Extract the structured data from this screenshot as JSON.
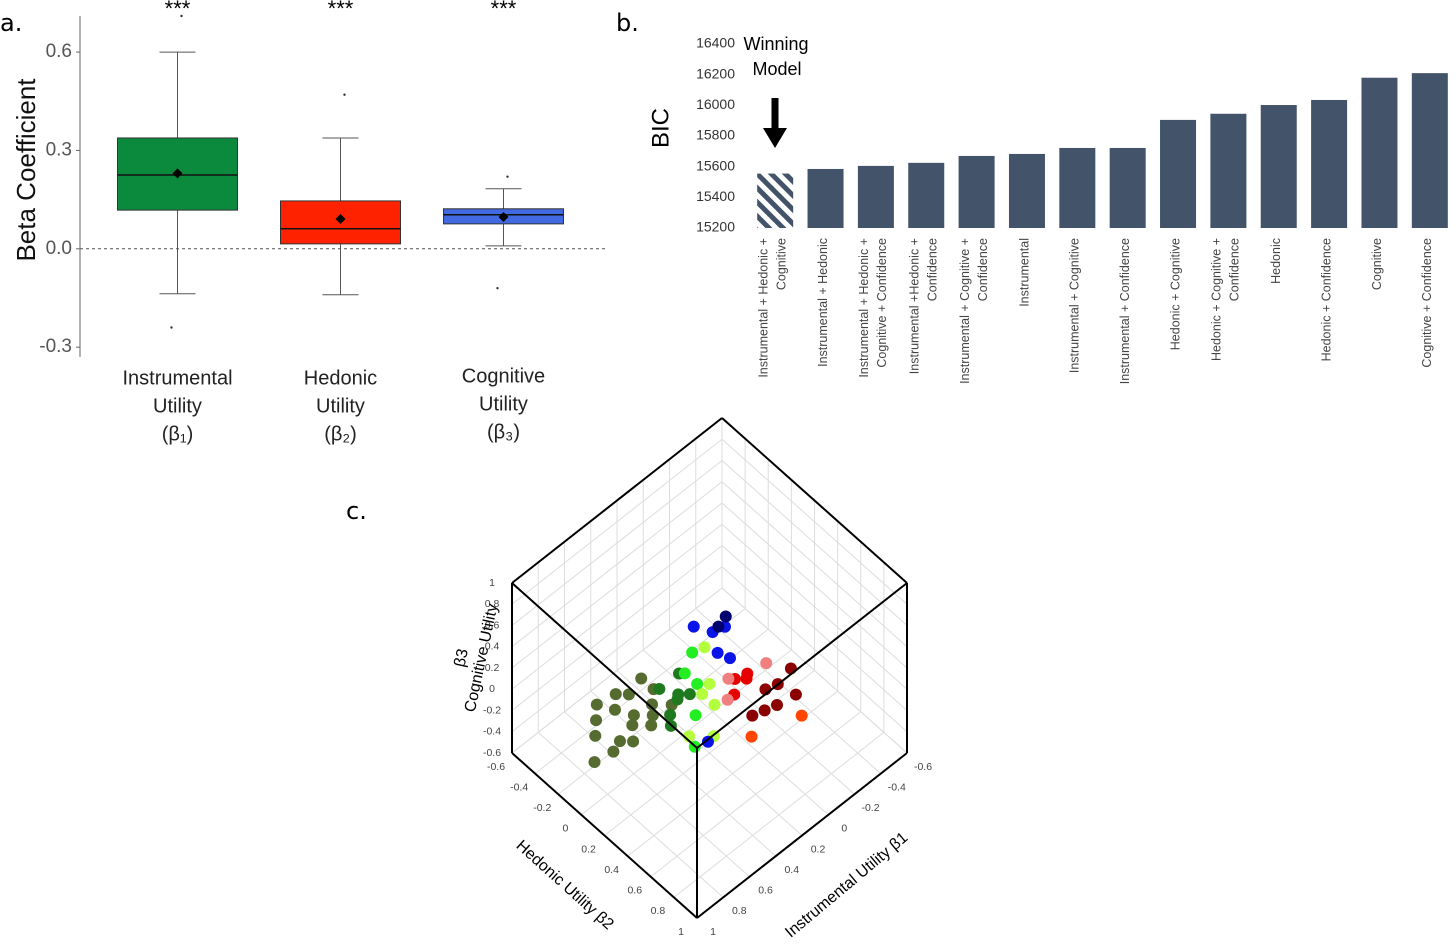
{
  "chart_data": [
    {
      "type": "box",
      "panel_label": "a.",
      "ylabel": "Beta Coefficient",
      "categories": [
        [
          "Instrumental",
          "Utility",
          "(β₁)"
        ],
        [
          "Hedonic",
          "Utility",
          "(β₂)"
        ],
        [
          "Cognitive",
          "Utility",
          "(β₃)"
        ]
      ],
      "colors": [
        "#0b8a3e",
        "#ff2200",
        "#4169e1"
      ],
      "significance": [
        "***",
        "***",
        "***"
      ],
      "boxes": [
        {
          "whisker_low": -0.137,
          "q1": 0.118,
          "median": 0.225,
          "q3": 0.338,
          "whisker_high": 0.6,
          "mean": 0.23,
          "outliers": [
            0.71,
            -0.24
          ]
        },
        {
          "whisker_low": -0.14,
          "q1": 0.015,
          "median": 0.061,
          "q3": 0.146,
          "whisker_high": 0.338,
          "mean": 0.091,
          "outliers": [
            0.47
          ]
        },
        {
          "whisker_low": 0.009,
          "q1": 0.076,
          "median": 0.104,
          "q3": 0.122,
          "whisker_high": 0.183,
          "mean": 0.097,
          "outliers": [
            0.22,
            -0.12
          ]
        }
      ],
      "reference_line": 0,
      "ylim": [
        -0.33,
        0.71
      ],
      "yticks": [
        -0.3,
        {
          "value": 0,
          "label": "0.0"
        },
        0.3,
        0.6
      ]
    },
    {
      "type": "bar",
      "panel_label": "b.",
      "ylabel": "BIC",
      "color": "#435369",
      "hatched_index": 0,
      "annotation": [
        "Winning",
        "Model"
      ],
      "categories": [
        [
          "Instrumental + Hedonic +",
          "Cognitive"
        ],
        [
          "Instrumental + Hedonic"
        ],
        [
          "Instrumental + Hedonic +",
          "Cognitive + Confidence"
        ],
        [
          "Instrumental +Hedonic +",
          "Confidence"
        ],
        [
          "Instrumental + Cognitive +",
          "Confidence"
        ],
        [
          "Instrumental"
        ],
        [
          "Instrumental + Cognitive"
        ],
        [
          "Instrumental + Confidence"
        ],
        [
          "Hedonic + Cognitive"
        ],
        [
          "Hedonic + Cognitive +",
          "Confidence"
        ],
        [
          "Hedonic"
        ],
        [
          "Hedonic + Confidence"
        ],
        [
          "Cognitive"
        ],
        [
          "Cognitive + Confidence"
        ]
      ],
      "values": [
        15555,
        15585,
        15605,
        15625,
        15670,
        15683,
        15722,
        15722,
        15905,
        15945,
        16002,
        16035,
        16180,
        16210
      ],
      "ylim": [
        15200,
        16400
      ],
      "yticks": [
        15200,
        15400,
        15600,
        15800,
        16000,
        16200,
        16400
      ]
    },
    {
      "type": "scatter3d",
      "panel_label": "c.",
      "xlabel": "Instrumental Utility β1",
      "ylabel": "Hedonic Utility β2",
      "zlabel": [
        "β3",
        "Cognitive Utility"
      ],
      "xlim": [
        -0.6,
        1
      ],
      "ylim": [
        -0.6,
        1
      ],
      "zlim": [
        -0.6,
        1
      ],
      "xticks": [
        -0.6,
        -0.4,
        -0.2,
        0,
        0.2,
        0.4,
        0.6,
        0.8,
        1
      ],
      "yticks": [
        -0.6,
        -0.4,
        -0.2,
        0,
        0.2,
        0.4,
        0.6,
        0.8,
        1
      ],
      "zticks": [
        -0.6,
        -0.4,
        -0.2,
        0,
        0.2,
        0.4,
        0.6,
        0.8,
        1
      ],
      "grid": true,
      "series": [
        {
          "color": "#556b2f",
          "x": [
            0.8,
            0.9,
            0.7,
            0.6,
            0.75,
            0.55,
            0.65,
            0.5,
            0.85,
            0.6,
            0.7,
            0.45,
            0.8,
            0.5,
            0.65,
            0.55,
            0.4,
            0.75
          ],
          "y": [
            -0.1,
            0,
            -0.05,
            0,
            0.05,
            0.1,
            -0.1,
            0.05,
            -0.05,
            0.15,
            0.1,
            0,
            0.05,
            -0.05,
            0.05,
            -0.1,
            0.1,
            -0.15
          ],
          "z": [
            0,
            -0.2,
            0.05,
            -0.05,
            -0.1,
            0.1,
            0.1,
            -0.1,
            -0.05,
            0,
            0.05,
            0.05,
            -0.15,
            0.15,
            -0.2,
            0,
            -0.05,
            0.05
          ]
        },
        {
          "color": "#1f7a1f",
          "x": [
            0.45,
            0.4,
            0.35,
            0.5,
            0.3,
            0.45,
            0.35
          ],
          "y": [
            0.05,
            0.15,
            0.1,
            0.2,
            0.05,
            0.15,
            0.2
          ],
          "z": [
            0.1,
            0.05,
            0,
            0.05,
            0.1,
            -0.15,
            0.1
          ]
        },
        {
          "color": "#22ee22",
          "x": [
            0.3,
            0.25,
            0.35,
            0.2,
            0.4
          ],
          "y": [
            0.1,
            0.15,
            0.25,
            0.05,
            0.3
          ],
          "z": [
            0.15,
            0.05,
            -0.05,
            0.2,
            -0.25
          ]
        },
        {
          "color": "#b3ff3d",
          "x": [
            0.3,
            0.2,
            0.4,
            0.15,
            0.3,
            0.25
          ],
          "y": [
            0.25,
            0.2,
            0.25,
            0.1,
            0.35,
            0.3
          ],
          "z": [
            0.1,
            0.05,
            -0.2,
            0.25,
            -0.2,
            0
          ]
        },
        {
          "color": "#0a14e6",
          "x": [
            0,
            -0.05,
            0.05,
            0.1,
            0,
            0.3
          ],
          "y": [
            0,
            0.05,
            0.1,
            -0.05,
            0.15,
            0.3
          ],
          "z": [
            0.15,
            0.2,
            0.1,
            0.25,
            0.05,
            -0.3
          ]
        },
        {
          "color": "#00006e",
          "x": [
            -0.1,
            0
          ],
          "y": [
            0,
            0.05
          ],
          "z": [
            0.2,
            0.25
          ]
        },
        {
          "color": "#e60000",
          "x": [
            0.05,
            0,
            0.1,
            0.05
          ],
          "y": [
            0.25,
            0.3,
            0.3,
            0.35
          ],
          "z": [
            0,
            0.05,
            -0.05,
            0.1
          ]
        },
        {
          "color": "#8b0000",
          "x": [
            -0.05,
            -0.1,
            -0.05,
            0,
            -0.2,
            0.05,
            -0.15
          ],
          "y": [
            0.4,
            0.45,
            0.5,
            0.45,
            0.45,
            0.4,
            0.55
          ],
          "z": [
            -0.05,
            0,
            -0.1,
            -0.15,
            0.05,
            -0.2,
            -0.05
          ]
        },
        {
          "color": "#f08080",
          "x": [
            0.1,
            0.15,
            -0.1
          ],
          "y": [
            0.25,
            0.3,
            0.35
          ],
          "z": [
            0.05,
            -0.05,
            0.1
          ]
        },
        {
          "color": "#ff4500",
          "x": [
            0.1,
            -0.15
          ],
          "y": [
            0.45,
            0.6
          ],
          "z": [
            -0.3,
            -0.2
          ]
        }
      ]
    }
  ]
}
